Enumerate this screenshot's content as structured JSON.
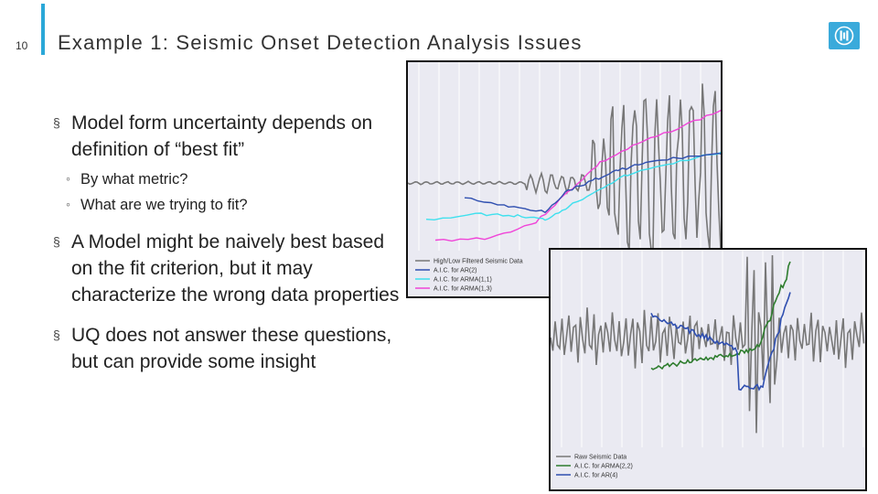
{
  "slide": {
    "number": "10",
    "title": "Example 1: Seismic Onset Detection Analysis Issues"
  },
  "bullets": [
    {
      "text": "Model form uncertainty depends on definition of “best fit”",
      "subs": [
        "By what metric?",
        "What are we trying to fit?"
      ]
    },
    {
      "text": "A Model might be naively best based on the fit criterion, but it may characterize the wrong data properties"
    },
    {
      "text": "UQ does not answer these questions, but can provide some insight"
    }
  ],
  "markers": {
    "bullet": "§",
    "sub": "◦"
  },
  "logo": {
    "icon": "thunderbird-logo-icon",
    "color": "#3aaadb"
  },
  "chart_data": [
    {
      "type": "line",
      "title": "",
      "legend_position": "bottom-left",
      "series": [
        {
          "name": "High/Low Filtered Seismic Data",
          "color": "#777777"
        },
        {
          "name": "A.I.C. for AR(2)",
          "color": "#2f4fb0"
        },
        {
          "name": "A.I.C. for ARMA(1,1)",
          "color": "#3ee0ee"
        },
        {
          "name": "A.I.C. for ARMA(1,3)",
          "color": "#f045d8"
        }
      ]
    },
    {
      "type": "line",
      "title": "",
      "legend_position": "bottom-left",
      "series": [
        {
          "name": "Raw Seismic Data",
          "color": "#777777"
        },
        {
          "name": "A.I.C. for ARMA(2,2)",
          "color": "#2e7d2e"
        },
        {
          "name": "A.I.C. for AR(4)",
          "color": "#2f4fb0"
        }
      ]
    }
  ]
}
